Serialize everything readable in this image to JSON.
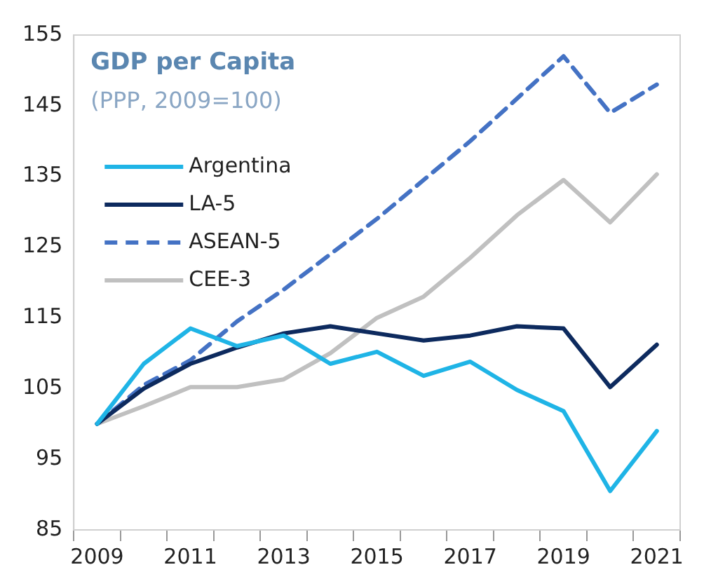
{
  "chart_data": {
    "type": "line",
    "title": "GDP per Capita",
    "subtitle": "(PPP, 2009=100)",
    "categories": [
      "2009",
      null,
      "2011",
      null,
      "2013",
      null,
      "2015",
      null,
      "2017",
      null,
      "2019",
      null,
      "2021"
    ],
    "series": [
      {
        "name": "Argentina",
        "color": "#1fb4e6",
        "values": [
          100,
          108.5,
          113.5,
          111,
          112.5,
          108.5,
          110.2,
          106.8,
          108.8,
          104.8,
          101.8,
          90.5,
          99
        ]
      },
      {
        "name": "LA-5",
        "color": "#0d2a5e",
        "values": [
          100,
          105,
          108.5,
          110.8,
          112.8,
          113.8,
          112.8,
          111.8,
          112.5,
          113.8,
          113.5,
          105.2,
          111.2
        ]
      },
      {
        "name": "ASEAN-5",
        "color": "#4472c4",
        "line_style": "dashed",
        "values": [
          100,
          105.5,
          109,
          114.5,
          119,
          124,
          129,
          134.5,
          140,
          146,
          152,
          144,
          148
        ]
      },
      {
        "name": "CEE-3",
        "color": "#c0c0c0",
        "values": [
          100,
          102.5,
          105.2,
          105.2,
          106.3,
          110,
          115,
          118,
          123.5,
          129.5,
          134.5,
          128.5,
          135.3
        ]
      }
    ],
    "ylim": [
      85,
      155
    ],
    "yticks": [
      85,
      95,
      105,
      115,
      125,
      135,
      145,
      155
    ],
    "grid": false,
    "legend": "top left",
    "marker": "none",
    "line_style": "solid"
  }
}
